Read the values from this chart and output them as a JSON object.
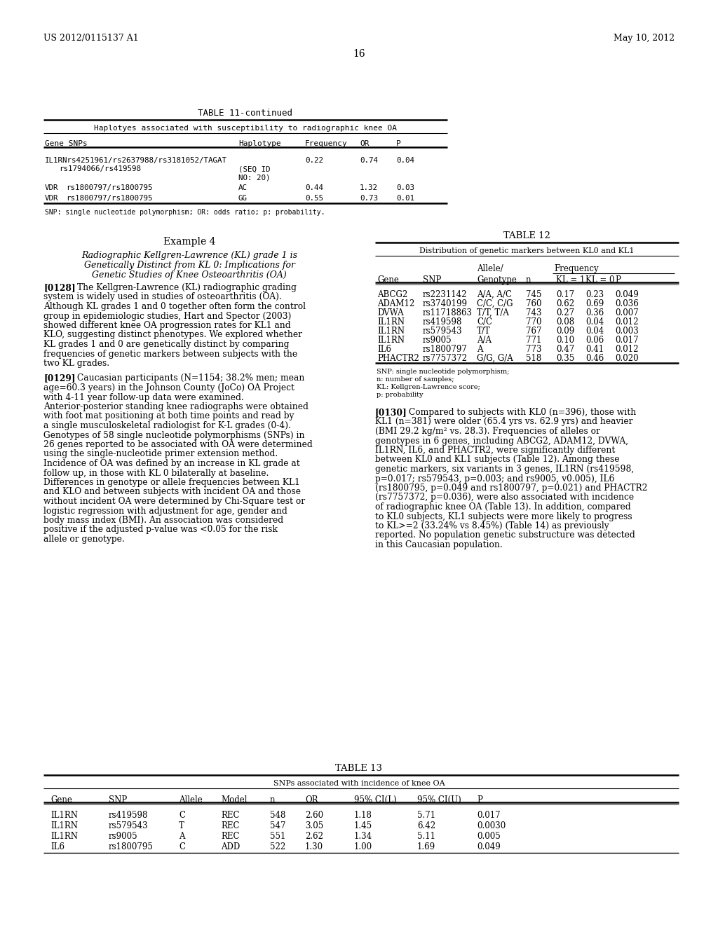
{
  "header_left": "US 2012/0115137 A1",
  "header_right": "May 10, 2012",
  "page_number": "16",
  "bg_color": "#ffffff",
  "table11_title": "TABLE 11-continued",
  "table11_subtitle": "Haplotyes associated with susceptibility to radiographic knee OA",
  "table11_fn": "SNP: single nucleotide polymorphism; OR: odds ratio; p: probability.",
  "example4_title": "Example 4",
  "example4_sub1": "Radiographic Kellgren-Lawrence (KL) grade 1 is",
  "example4_sub2": "Genetically Distinct from KL 0: Implications for",
  "example4_sub3": "Genetic Studies of Knee Osteoarthritis (OA)",
  "para0128_text": "The Kellgren-Lawrence (KL) radiographic grading system is widely used in studies of osteoarthritis (OA). Although KL grades 1 and 0 together often form the control group in epidemiologic studies, Hart and Spector (2003) showed different knee OA progression rates for KL1 and KLO, suggesting distinct phenotypes. We explored whether KL grades 1 and 0 are genetically distinct by comparing frequencies of genetic markers between subjects with the two KL grades.",
  "para0129_text": "Caucasian participants (N=1154; 38.2% men; mean age=60.3 years) in the Johnson County (JoCo) OA Project with 4-11 year follow-up data were examined. Anterior-posterior standing knee radiographs were obtained with foot mat positioning at both time points and read by a single musculoskeletal radiologist for K-L grades (0-4). Genotypes of 58 single nucleotide polymorphisms (SNPs) in 26 genes reported to be associated with OA were determined using the single-nucleotide primer extension method. Incidence of OA was defined by an increase in KL grade at follow up, in those with KL 0 bilaterally at baseline. Differences in genotype or allele frequencies between KL1 and KLO and between subjects with incident OA and those without incident OA were determined by Chi-Square test or logistic regression with adjustment for age, gender and body mass index (BMI). An association was considered positive if the adjusted p-value was <0.05 for the risk allele or genotype.",
  "para0130_text": "Compared to subjects with KL0 (n=396), those with KL1 (n=381) were older (65.4 yrs vs. 62.9 yrs) and heavier (BMI 29.2 kg/m² vs. 28.3). Frequencies of alleles or genotypes in 6 genes, including ABCG2, ADAM12, DVWA, IL1RN, IL6, and PHACTR2, were significantly different between KL0 and KL1 subjects (Table 12). Among these genetic markers, six variants in 3 genes, IL1RN (rs419598, p=0.017; rs579543, p=0.003; and rs9005, v0.005), IL6 (rs1800795, p=0.049 and rs1800797, p=0.021) and PHACTR2 (rs7757372, p=0.036), were also associated with incidence of radiographic knee OA (Table 13). In addition, compared to KL0 subjects, KL1 subjects were more likely to progress to KL>=2 (33.24% vs 8.45%) (Table 14) as previously reported. No population genetic substructure was detected in this Caucasian population.",
  "table12_title": "TABLE 12",
  "table12_subtitle": "Distribution of genetic markers between KL0 and KL1",
  "table12_rows": [
    [
      "ABCG2",
      "rs2231142",
      "A/A, A/C",
      "745",
      "0.17",
      "0.23",
      "0.049"
    ],
    [
      "ADAM12",
      "rs3740199",
      "C/C, C/G",
      "760",
      "0.62",
      "0.69",
      "0.036"
    ],
    [
      "DVWA",
      "rs11718863",
      "T/T, T/A",
      "743",
      "0.27",
      "0.36",
      "0.007"
    ],
    [
      "IL1RN",
      "rs419598",
      "C/C",
      "770",
      "0.08",
      "0.04",
      "0.012"
    ],
    [
      "IL1RN",
      "rs579543",
      "T/T",
      "767",
      "0.09",
      "0.04",
      "0.003"
    ],
    [
      "IL1RN",
      "rs9005",
      "A/A",
      "771",
      "0.10",
      "0.06",
      "0.017"
    ],
    [
      "IL6",
      "rs1800797",
      "A",
      "773",
      "0.47",
      "0.41",
      "0.012"
    ],
    [
      "PHACTR2",
      "rs7757372",
      "G/G, G/A",
      "518",
      "0.35",
      "0.46",
      "0.020"
    ]
  ],
  "table12_footnotes": [
    "SNP: single nucleotide polymorphism;",
    "n: number of samples;",
    "KL: Kellgren-Lawrence score;",
    "p: probability"
  ],
  "table13_title": "TABLE 13",
  "table13_subtitle": "SNPs associated with incidence of knee OA",
  "table13_rows": [
    [
      "IL1RN",
      "rs419598",
      "C",
      "REC",
      "548",
      "2.60",
      "1.18",
      "5.71",
      "0.017"
    ],
    [
      "IL1RN",
      "rs579543",
      "T",
      "REC",
      "547",
      "3.05",
      "1.45",
      "6.42",
      "0.0030"
    ],
    [
      "IL1RN",
      "rs9005",
      "A",
      "REC",
      "551",
      "2.62",
      "1.34",
      "5.11",
      "0.005"
    ],
    [
      "IL6",
      "rs1800795",
      "C",
      "ADD",
      "522",
      "1.30",
      "1.00",
      "1.69",
      "0.049"
    ]
  ]
}
